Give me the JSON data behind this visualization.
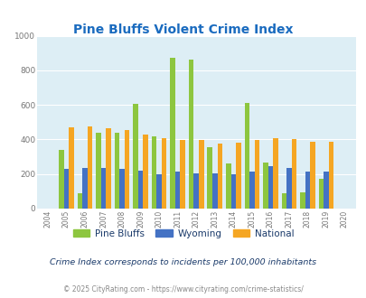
{
  "title": "Pine Bluffs Violent Crime Index",
  "years": [
    2004,
    2005,
    2006,
    2007,
    2008,
    2009,
    2010,
    2011,
    2012,
    2013,
    2014,
    2015,
    2016,
    2017,
    2018,
    2019,
    2020
  ],
  "pine_bluffs": [
    0,
    340,
    90,
    440,
    440,
    605,
    420,
    875,
    860,
    355,
    260,
    610,
    265,
    90,
    95,
    175,
    0
  ],
  "wyoming": [
    0,
    230,
    235,
    235,
    230,
    220,
    200,
    215,
    205,
    205,
    200,
    215,
    245,
    235,
    215,
    215,
    0
  ],
  "national": [
    0,
    470,
    475,
    465,
    455,
    430,
    410,
    395,
    395,
    375,
    380,
    395,
    405,
    400,
    385,
    385,
    0
  ],
  "pine_bluffs_color": "#8dc63f",
  "wyoming_color": "#4472c4",
  "national_color": "#f5a623",
  "bg_color": "#ddeef5",
  "ylim": [
    0,
    1000
  ],
  "yticks": [
    0,
    200,
    400,
    600,
    800,
    1000
  ],
  "subtitle": "Crime Index corresponds to incidents per 100,000 inhabitants",
  "footer": "© 2025 CityRating.com - https://www.cityrating.com/crime-statistics/",
  "title_color": "#1a6bbf",
  "subtitle_color": "#1a3a6a",
  "footer_color": "#888888",
  "legend_label_color": "#1a3a6a"
}
